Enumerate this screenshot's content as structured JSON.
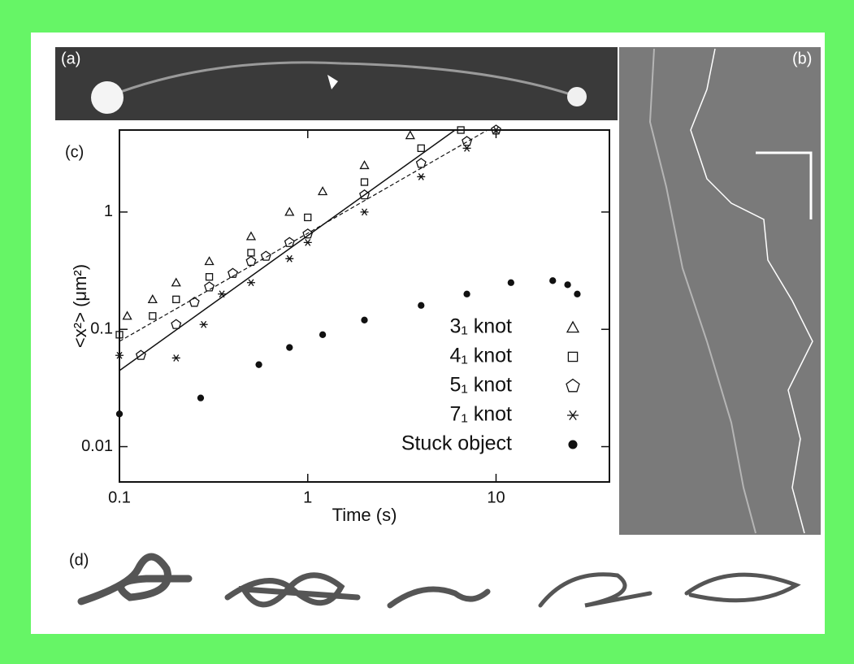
{
  "panels": [
    "(a)",
    "(b)",
    "(c)",
    "(d)"
  ],
  "chart_data": {
    "type": "scatter",
    "xlabel": "Time (s)",
    "ylabel": "<x²> (μm²)",
    "xscale": "log",
    "yscale": "log",
    "xlim": [
      0.1,
      40
    ],
    "ylim": [
      0.005,
      5
    ],
    "xticks": [
      0.1,
      1,
      10
    ],
    "yticks": [
      0.01,
      0.1,
      1
    ],
    "legend": "lower right",
    "series": [
      {
        "name": "3₁ knot",
        "marker": "triangle",
        "color": "#111111",
        "x": [
          0.11,
          0.15,
          0.2,
          0.3,
          0.5,
          0.8,
          1.2,
          2,
          3.5
        ],
        "values": [
          0.13,
          0.18,
          0.25,
          0.38,
          0.62,
          1.0,
          1.5,
          2.5,
          4.5
        ]
      },
      {
        "name": "4₁ knot",
        "marker": "square",
        "color": "#111111",
        "x": [
          0.1,
          0.15,
          0.2,
          0.3,
          0.5,
          1,
          2,
          4,
          6.5
        ],
        "values": [
          0.09,
          0.13,
          0.18,
          0.28,
          0.45,
          0.9,
          1.8,
          3.5,
          5
        ]
      },
      {
        "name": "5₁ knot",
        "marker": "pentagon",
        "color": "#111111",
        "x": [
          0.13,
          0.2,
          0.25,
          0.3,
          0.4,
          0.5,
          0.6,
          0.8,
          1,
          2,
          4,
          7,
          10
        ],
        "values": [
          0.06,
          0.11,
          0.17,
          0.23,
          0.3,
          0.38,
          0.42,
          0.55,
          0.65,
          1.4,
          2.6,
          4,
          5
        ]
      },
      {
        "name": "7₁ knot",
        "marker": "star",
        "color": "#111111",
        "x": [
          0.1,
          0.2,
          0.28,
          0.35,
          0.5,
          0.8,
          1,
          2,
          4,
          7,
          10
        ],
        "values": [
          0.06,
          0.057,
          0.11,
          0.2,
          0.25,
          0.4,
          0.55,
          1,
          2,
          3.5,
          5
        ]
      },
      {
        "name": "Stuck object",
        "marker": "circle",
        "color": "#111111",
        "x": [
          0.1,
          0.27,
          0.55,
          0.8,
          1.2,
          2,
          4,
          7,
          12,
          20,
          24,
          27
        ],
        "values": [
          0.019,
          0.026,
          0.05,
          0.07,
          0.09,
          0.12,
          0.16,
          0.2,
          0.25,
          0.26,
          0.24,
          0.2
        ]
      }
    ]
  }
}
